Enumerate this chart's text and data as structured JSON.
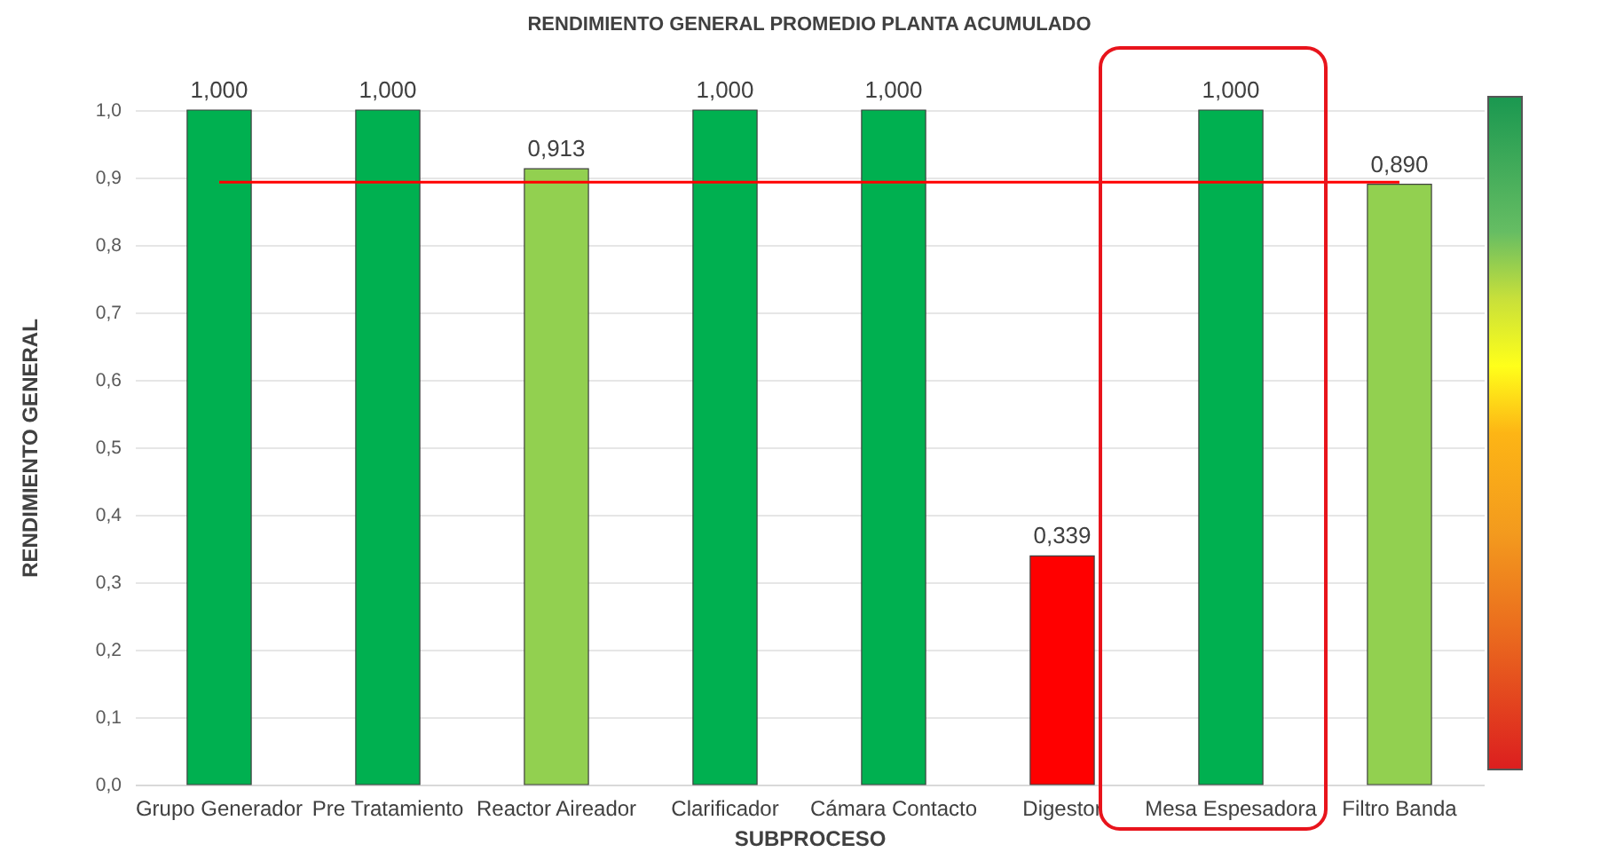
{
  "chart_data": {
    "type": "bar",
    "title": "RENDIMIENTO GENERAL PROMEDIO PLANTA ACUMULADO",
    "xlabel": "SUBPROCESO",
    "ylabel": "RENDIMIENTO GENERAL",
    "categories": [
      "Grupo Generador",
      "Pre Tratamiento",
      "Reactor Aireador",
      "Clarificador",
      "Cámara Contacto",
      "Digestor",
      "Mesa Espesadora",
      "Filtro Banda"
    ],
    "values": [
      1.0,
      1.0,
      0.913,
      1.0,
      1.0,
      0.339,
      1.0,
      0.89
    ],
    "colors": [
      "#00b050",
      "#00b050",
      "#92d050",
      "#00b050",
      "#00b050",
      "#ff0000",
      "#00b050",
      "#92d050"
    ],
    "value_labels": [
      "1,000",
      "1,000",
      "0,913",
      "1,000",
      "1,000",
      "0,339",
      "1,000",
      "0,890"
    ],
    "ylim": [
      0,
      1.0
    ],
    "yticks": [
      {
        "value": 0,
        "label": "0,0"
      },
      {
        "value": 0.1,
        "label": "0,1"
      },
      {
        "value": 0.2,
        "label": "0,2"
      },
      {
        "value": 0.3,
        "label": "0,3"
      },
      {
        "value": 0.4,
        "label": "0,4"
      },
      {
        "value": 0.5,
        "label": "0,5"
      },
      {
        "value": 0.6,
        "label": "0,6"
      },
      {
        "value": 0.7,
        "label": "0,7"
      },
      {
        "value": 0.8,
        "label": "0,8"
      },
      {
        "value": 0.9,
        "label": "0,9"
      },
      {
        "value": 1.0,
        "label": "1,0"
      }
    ],
    "ref_lines": [
      {
        "axis": "y",
        "value": 0.893,
        "color": "#ff0000"
      }
    ],
    "grid": "y"
  }
}
